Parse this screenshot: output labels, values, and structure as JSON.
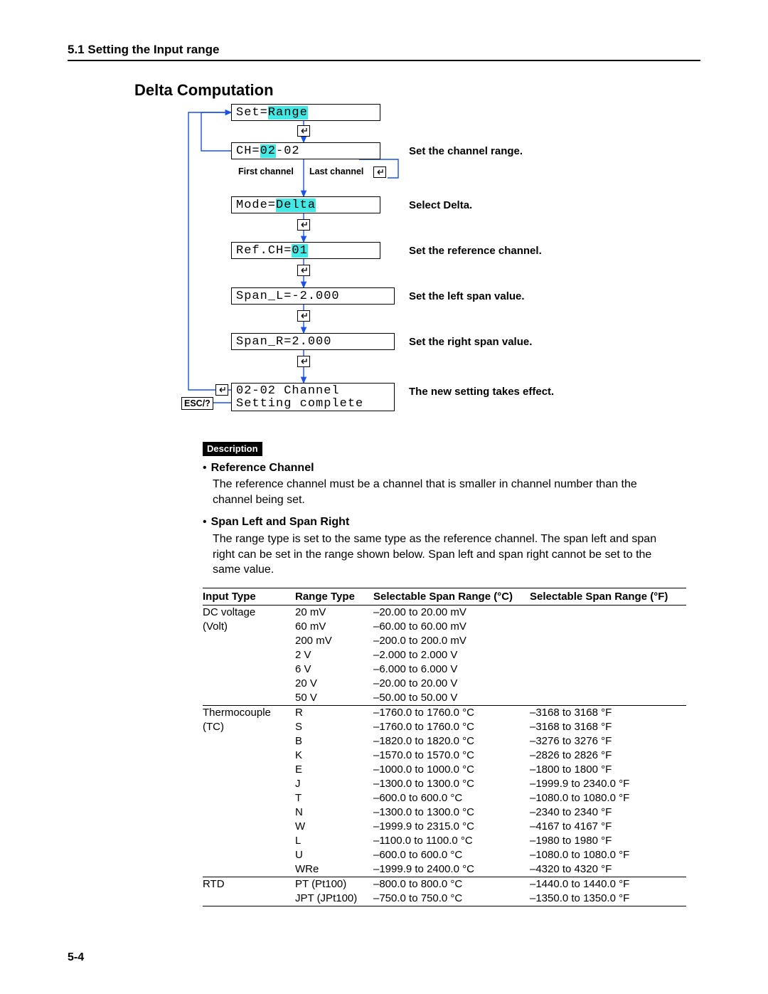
{
  "header": {
    "section": "5.1  Setting the Input range"
  },
  "title": "Delta Computation",
  "pageNumber": "5-4",
  "flow": {
    "boxes": {
      "set": {
        "pre": "Set=",
        "hl": "Range",
        "post": ""
      },
      "ch": {
        "pre": "CH=",
        "hl": "02",
        "post": "-02"
      },
      "mode": {
        "pre": "Mode=",
        "hl": "Delta",
        "post": ""
      },
      "ref": {
        "pre": "Ref.CH=",
        "hl": "01",
        "post": ""
      },
      "spanl": {
        "pre": "Span_L=",
        "hl": " ",
        "post": "-2.000"
      },
      "spanr": {
        "pre": "Span_R=",
        "hl": " ",
        "post": " 2.000"
      },
      "final1": "02-02 Channel",
      "final2": "Setting complete"
    },
    "labels": {
      "first": "First channel",
      "last": "Last channel",
      "ch": "Set the channel range.",
      "mode": "Select Delta.",
      "ref": "Set the reference channel.",
      "spanl": "Set the left span value.",
      "spanr": "Set the right span value.",
      "final": "The new setting takes effect.",
      "esc": "ESC/?"
    }
  },
  "description": {
    "head": "Description",
    "refTitle": "Reference Channel",
    "refText": "The reference channel must be a channel that is smaller in channel number than the channel being set.",
    "spanTitle": "Span Left and Span Right",
    "spanText": "The range type is set to the same type as the reference channel.  The span left and span right can be set in the range shown below.  Span left and span right cannot be set to the same value."
  },
  "table": {
    "headers": [
      "Input Type",
      "Range Type",
      "Selectable Span Range (°C)",
      "Selectable Span Range (°F)"
    ],
    "groups": [
      {
        "input": [
          "DC voltage",
          "(Volt)"
        ],
        "rows": [
          [
            "20 mV",
            "–20.00 to 20.00 mV",
            ""
          ],
          [
            "60 mV",
            "–60.00 to 60.00 mV",
            ""
          ],
          [
            "200 mV",
            "–200.0 to 200.0 mV",
            ""
          ],
          [
            "2 V",
            "–2.000 to 2.000 V",
            ""
          ],
          [
            "6 V",
            "–6.000 to 6.000 V",
            ""
          ],
          [
            "20 V",
            "–20.00 to 20.00 V",
            ""
          ],
          [
            "50 V",
            "–50.00 to 50.00 V",
            ""
          ]
        ]
      },
      {
        "input": [
          "Thermocouple",
          "(TC)"
        ],
        "rows": [
          [
            "R",
            "–1760.0 to 1760.0 °C",
            "–3168 to 3168 °F"
          ],
          [
            "S",
            "–1760.0 to 1760.0 °C",
            "–3168 to 3168 °F"
          ],
          [
            "B",
            "–1820.0 to 1820.0 °C",
            "–3276 to 3276 °F"
          ],
          [
            "K",
            "–1570.0 to 1570.0 °C",
            "–2826 to 2826 °F"
          ],
          [
            "E",
            "–1000.0 to 1000.0 °C",
            "–1800 to 1800 °F"
          ],
          [
            "J",
            "–1300.0 to 1300.0 °C",
            "–1999.9 to 2340.0 °F"
          ],
          [
            "T",
            "–600.0 to 600.0 °C",
            "–1080.0 to 1080.0 °F"
          ],
          [
            "N",
            "–1300.0 to 1300.0 °C",
            "–2340 to 2340 °F"
          ],
          [
            "W",
            "–1999.9 to 2315.0 °C",
            "–4167 to 4167 °F"
          ],
          [
            "L",
            "–1100.0 to 1100.0 °C",
            "–1980 to 1980 °F"
          ],
          [
            "U",
            "–600.0 to 600.0 °C",
            "–1080.0 to 1080.0 °F"
          ],
          [
            "WRe",
            "–1999.9 to 2400.0 °C",
            "–4320 to 4320 °F"
          ]
        ]
      },
      {
        "input": [
          "RTD",
          ""
        ],
        "rows": [
          [
            "PT (Pt100)",
            "–800.0 to 800.0 °C",
            "–1440.0 to 1440.0 °F"
          ],
          [
            "JPT (JPt100)",
            "–750.0 to 750.0 °C",
            "–1350.0 to 1350.0 °F"
          ]
        ]
      }
    ]
  }
}
